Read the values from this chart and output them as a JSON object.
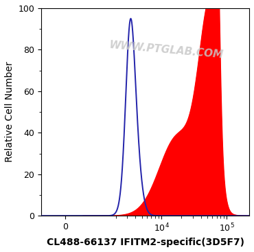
{
  "xlabel": "CL488-66137 IFITM2-specific(3D5F7)",
  "ylabel": "Relative Cell Number",
  "ylabel_fontsize": 10,
  "xlabel_fontsize": 10,
  "xlabel_fontweight": "bold",
  "ylim": [
    0,
    100
  ],
  "yticks": [
    0,
    20,
    40,
    60,
    80,
    100
  ],
  "background_color": "#ffffff",
  "plot_bg_color": "#ffffff",
  "blue_color": "#2222aa",
  "red_color": "#ff0000",
  "watermark": "WWW.PTGLAB.COM",
  "watermark_color": "#c8c8c8",
  "watermark_fontsize": 11,
  "tick_fontsize": 9,
  "linewidth_blue": 1.4
}
